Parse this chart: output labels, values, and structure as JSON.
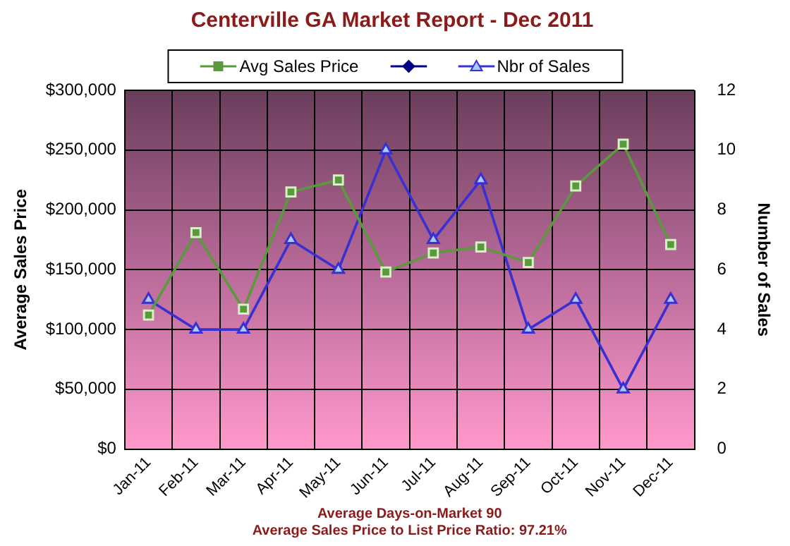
{
  "chart_data": {
    "type": "line",
    "title": "Centerville GA Market Report - Dec 2011",
    "categories": [
      "Jan-11",
      "Feb-11",
      "Mar-11",
      "Apr-11",
      "May-11",
      "Jun-11",
      "Jul-11",
      "Aug-11",
      "Sep-11",
      "Oct-11",
      "Nov-11",
      "Dec-11"
    ],
    "series": [
      {
        "name": "Avg Sales Price",
        "color": "#5a9a3c",
        "marker": "square",
        "values": [
          112000,
          181000,
          117000,
          215000,
          225000,
          148000,
          164000,
          169000,
          156000,
          220000,
          255000,
          171000
        ]
      },
      {
        "name": "Nbr of Sales",
        "color": "#3a2fd0",
        "marker": "triangle",
        "axis": "y2",
        "values": [
          5,
          4,
          4,
          7,
          6,
          10,
          7,
          9,
          4,
          5,
          2,
          5
        ]
      }
    ],
    "ylabel": "Average Sales Price",
    "y2label": "Number of Sales",
    "ylim": [
      0,
      300000
    ],
    "yticks": [
      {
        "value": 0,
        "label": "$0"
      },
      {
        "value": 50000,
        "label": "$50,000"
      },
      {
        "value": 100000,
        "label": "$100,000"
      },
      {
        "value": 150000,
        "label": "$150,000"
      },
      {
        "value": 200000,
        "label": "$200,000"
      },
      {
        "value": 250000,
        "label": "$250,000"
      },
      {
        "value": 300000,
        "label": "$300,000"
      }
    ],
    "y2lim": [
      0,
      12
    ],
    "y2ticks": [
      0,
      2,
      4,
      6,
      8,
      10,
      12
    ],
    "grid": true,
    "legend": "top",
    "annotations": [
      "Average Days-on-Market 90",
      "Average Sales Price to List Price Ratio: 97.21%"
    ]
  }
}
